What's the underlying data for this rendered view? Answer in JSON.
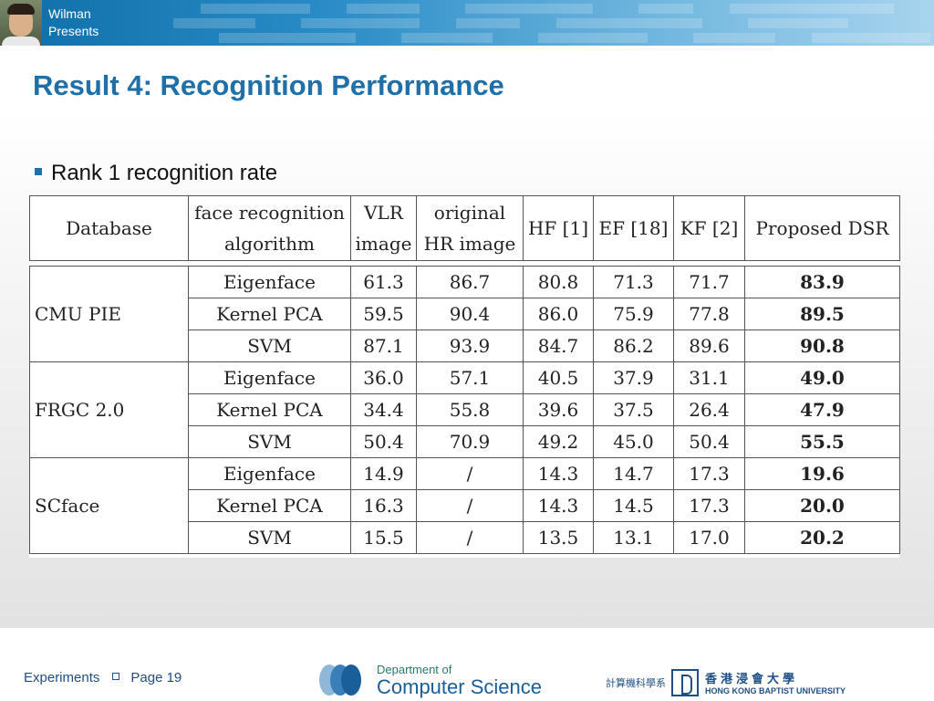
{
  "header": {
    "presenter_line1": "Wilman",
    "presenter_line2": "Presents"
  },
  "slide_title": "Result 4: Recognition Performance",
  "bullet": "Rank 1 recognition rate",
  "table": {
    "header": [
      "Database",
      "face recognition algorithm",
      "VLR image",
      "original HR image",
      "HF [1]",
      "EF [18]",
      "KF [2]",
      "Proposed DSR"
    ],
    "groups": [
      {
        "database": "CMU PIE",
        "rows": [
          {
            "algorithm": "Eigenface",
            "vlr": "61.3",
            "hr": "86.7",
            "hf": "80.8",
            "ef": "71.3",
            "kf": "71.7",
            "dsr": "83.9"
          },
          {
            "algorithm": "Kernel PCA",
            "vlr": "59.5",
            "hr": "90.4",
            "hf": "86.0",
            "ef": "75.9",
            "kf": "77.8",
            "dsr": "89.5"
          },
          {
            "algorithm": "SVM",
            "vlr": "87.1",
            "hr": "93.9",
            "hf": "84.7",
            "ef": "86.2",
            "kf": "89.6",
            "dsr": "90.8"
          }
        ]
      },
      {
        "database": "FRGC 2.0",
        "rows": [
          {
            "algorithm": "Eigenface",
            "vlr": "36.0",
            "hr": "57.1",
            "hf": "40.5",
            "ef": "37.9",
            "kf": "31.1",
            "dsr": "49.0"
          },
          {
            "algorithm": "Kernel PCA",
            "vlr": "34.4",
            "hr": "55.8",
            "hf": "39.6",
            "ef": "37.5",
            "kf": "26.4",
            "dsr": "47.9"
          },
          {
            "algorithm": "SVM",
            "vlr": "50.4",
            "hr": "70.9",
            "hf": "49.2",
            "ef": "45.0",
            "kf": "50.4",
            "dsr": "55.5"
          }
        ]
      },
      {
        "database": "SCface",
        "rows": [
          {
            "algorithm": "Eigenface",
            "vlr": "14.9",
            "hr": "/",
            "hf": "14.3",
            "ef": "14.7",
            "kf": "17.3",
            "dsr": "19.6"
          },
          {
            "algorithm": "Kernel PCA",
            "vlr": "16.3",
            "hr": "/",
            "hf": "14.3",
            "ef": "14.5",
            "kf": "17.3",
            "dsr": "20.0"
          },
          {
            "algorithm": "SVM",
            "vlr": "15.5",
            "hr": "/",
            "hf": "13.5",
            "ef": "13.1",
            "kf": "17.0",
            "dsr": "20.2"
          }
        ]
      }
    ]
  },
  "footer": {
    "section": "Experiments",
    "page": "Page 19",
    "dept_line1": "Department of",
    "dept_line2": "Computer Science",
    "dept_cjk": "計算機科學系",
    "university_cjk": "香港浸會大學",
    "university_en": "HONG KONG BAPTIST UNIVERSITY"
  },
  "colors": {
    "accent": "#1f6fa8",
    "header_bar": "#2a8cc6",
    "footer_text": "#1f4f86"
  }
}
